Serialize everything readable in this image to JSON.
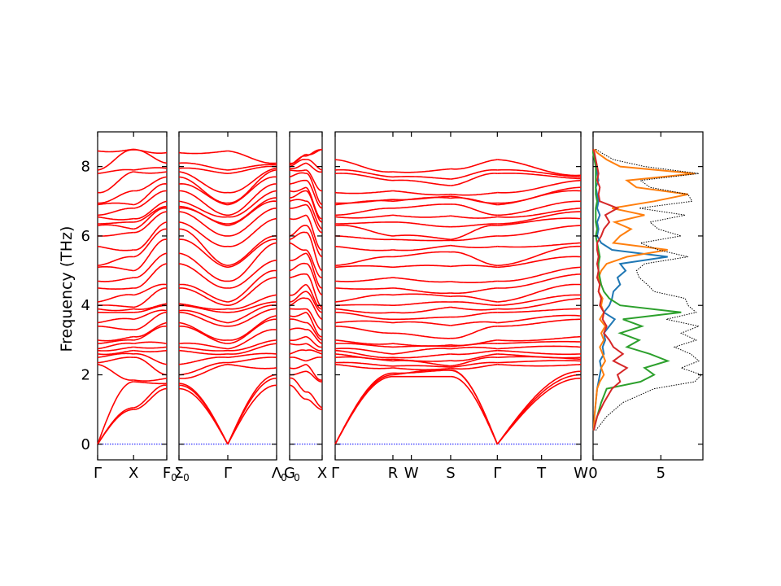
{
  "chart_data": {
    "type": "line",
    "title": "",
    "ylabel": "Frequency (THz)",
    "ylim": [
      -0.45,
      9.0
    ],
    "yticks": [
      0,
      2,
      4,
      6,
      8
    ],
    "band_color": "#ff0000",
    "zero_line_color": "#0000ff",
    "panels": [
      {
        "name": "band-segment-1",
        "xlim": [
          0,
          1
        ],
        "high_symmetry_points": [
          {
            "label": "Γ",
            "sub": "",
            "x": 0.0
          },
          {
            "label": "X",
            "sub": "",
            "x": 0.52
          },
          {
            "label": "F",
            "sub": "0",
            "x": 1.0
          }
        ],
        "bands": {
          "start": [
            0,
            0,
            0,
            2.3,
            2.35,
            2.5,
            2.6,
            2.7,
            2.75,
            2.9,
            3.0,
            3.4,
            3.5,
            3.8,
            3.9,
            4.0,
            4.1,
            4.5,
            4.7,
            5.1,
            5.15,
            5.7,
            6.0,
            6.3,
            6.35,
            6.55,
            6.6,
            6.9,
            6.95,
            7.25,
            7.8,
            7.9,
            8.45
          ],
          "mid": [
            1.0,
            1.05,
            1.8,
            1.85,
            2.6,
            2.8,
            2.9,
            2.5,
            3.1,
            3.0,
            2.7,
            3.3,
            3.8,
            3.6,
            3.95,
            3.9,
            4.5,
            4.3,
            5.0,
            4.8,
            5.6,
            5.4,
            6.2,
            6.1,
            6.5,
            6.4,
            6.9,
            6.8,
            7.3,
            7.9,
            7.85,
            8.5,
            8.48
          ],
          "end": [
            1.6,
            1.7,
            1.75,
            1.9,
            2.0,
            2.3,
            2.7,
            2.8,
            2.9,
            3.4,
            3.5,
            3.8,
            3.85,
            4.0,
            4.05,
            4.5,
            4.6,
            5.2,
            5.5,
            5.9,
            6.2,
            6.4,
            6.7,
            6.8,
            6.85,
            7.0,
            7.3,
            7.5,
            7.7,
            7.85,
            7.95,
            8.1,
            8.4
          ]
        }
      },
      {
        "name": "band-segment-2",
        "xlim": [
          0,
          1
        ],
        "high_symmetry_points": [
          {
            "label": "Σ",
            "sub": "0",
            "x": 0.0
          },
          {
            "label": "Γ",
            "sub": "",
            "x": 0.5
          },
          {
            "label": "Λ",
            "sub": "0",
            "x": 1.0
          }
        ],
        "bands": {
          "start": [
            1.6,
            1.7,
            1.75,
            1.9,
            2.0,
            2.3,
            2.7,
            2.8,
            2.9,
            3.4,
            3.5,
            3.8,
            3.85,
            4.0,
            4.05,
            4.5,
            4.6,
            5.2,
            5.5,
            5.9,
            6.2,
            6.4,
            6.7,
            6.8,
            6.85,
            7.0,
            7.3,
            7.5,
            7.7,
            7.85,
            7.95,
            8.1,
            8.4
          ],
          "mid": [
            0,
            0,
            0,
            2.3,
            2.35,
            2.5,
            2.6,
            2.7,
            2.75,
            2.9,
            3.0,
            3.4,
            3.5,
            3.8,
            3.9,
            4.0,
            4.1,
            4.5,
            4.7,
            5.1,
            5.15,
            5.7,
            6.0,
            6.3,
            6.35,
            6.55,
            6.6,
            6.9,
            6.95,
            7.25,
            7.8,
            7.9,
            8.45
          ],
          "end": [
            1.7,
            1.9,
            2.0,
            2.2,
            2.5,
            2.6,
            2.9,
            3.0,
            3.3,
            3.6,
            3.7,
            3.9,
            4.0,
            4.1,
            4.3,
            4.8,
            5.0,
            5.3,
            5.8,
            5.9,
            6.0,
            6.5,
            6.8,
            7.0,
            7.1,
            7.3,
            7.5,
            7.7,
            7.9,
            7.95,
            8.0,
            8.05,
            8.1
          ]
        }
      },
      {
        "name": "band-segment-3",
        "xlim": [
          0,
          1
        ],
        "high_symmetry_points": [
          {
            "label": "G",
            "sub": "0",
            "x": 0.0
          },
          {
            "label": "X",
            "sub": "",
            "x": 1.0
          }
        ],
        "bands": {
          "start": [
            1.7,
            1.9,
            2.0,
            2.2,
            2.5,
            2.6,
            2.9,
            3.0,
            3.3,
            3.6,
            3.7,
            3.9,
            4.0,
            4.1,
            4.3,
            4.8,
            5.0,
            5.3,
            5.8,
            5.9,
            6.0,
            6.5,
            6.8,
            7.0,
            7.1,
            7.3,
            7.5,
            7.7,
            7.9,
            7.95,
            8.0,
            8.05,
            8.1
          ],
          "mid": [
            1.3,
            1.5,
            2.1,
            2.4,
            2.7,
            2.3,
            3.1,
            2.9,
            3.5,
            3.3,
            3.9,
            4.2,
            3.8,
            4.4,
            4.6,
            4.9,
            5.2,
            5.6,
            5.5,
            6.1,
            6.3,
            6.6,
            7.0,
            6.9,
            7.3,
            7.6,
            7.4,
            7.9,
            8.1,
            8.2,
            7.8,
            8.3,
            8.35
          ],
          "end": [
            1.0,
            1.05,
            1.8,
            1.85,
            2.6,
            2.8,
            2.9,
            2.5,
            3.1,
            3.0,
            2.7,
            3.3,
            3.8,
            3.6,
            3.95,
            3.9,
            4.5,
            4.3,
            5.0,
            4.8,
            5.6,
            5.4,
            6.2,
            6.1,
            6.5,
            6.4,
            6.9,
            6.8,
            7.3,
            7.9,
            7.85,
            8.5,
            8.48
          ]
        }
      },
      {
        "name": "band-segment-4",
        "xlim": [
          0,
          1
        ],
        "high_symmetry_points": [
          {
            "label": "Γ",
            "sub": "",
            "x": 0.0
          },
          {
            "label": "R",
            "sub": "",
            "x": 0.235
          },
          {
            "label": "W",
            "sub": "",
            "x": 0.31
          },
          {
            "label": "S",
            "sub": "",
            "x": 0.47
          },
          {
            "label": "Γ",
            "sub": "",
            "x": 0.66
          },
          {
            "label": "T",
            "sub": "",
            "x": 0.84
          },
          {
            "label": "W",
            "sub": "",
            "x": 1.0
          }
        ],
        "bands": {
          "gamma": [
            0,
            0,
            0,
            2.3,
            2.35,
            2.5,
            2.6,
            2.7,
            2.75,
            2.9,
            3.0,
            3.4,
            3.5,
            3.8,
            3.9,
            4.0,
            4.1,
            4.5,
            4.7,
            5.1,
            5.15,
            5.7,
            6.0,
            6.3,
            6.35,
            6.55,
            6.6,
            6.9,
            6.95,
            7.25,
            7.8,
            7.9,
            8.2
          ],
          "zone": [
            1.95,
            2.0,
            2.05,
            2.2,
            2.25,
            2.4,
            2.45,
            2.5,
            2.6,
            2.8,
            2.9,
            3.2,
            3.5,
            3.6,
            3.8,
            4.0,
            4.3,
            4.5,
            4.8,
            5.1,
            5.4,
            5.6,
            5.9,
            6.0,
            6.4,
            6.6,
            6.8,
            7.0,
            7.05,
            7.3,
            7.6,
            7.7,
            7.85
          ],
          "end": [
            1.9,
            2.0,
            2.1,
            2.3,
            2.4,
            2.45,
            2.5,
            2.6,
            2.8,
            2.95,
            3.1,
            3.6,
            3.7,
            3.9,
            4.2,
            4.3,
            4.6,
            4.9,
            5.1,
            5.4,
            5.7,
            5.8,
            6.3,
            6.5,
            6.7,
            6.8,
            7.0,
            7.3,
            7.4,
            7.6,
            7.65,
            7.7,
            7.75
          ]
        }
      }
    ],
    "dos": {
      "xlim": [
        0,
        8.1
      ],
      "xticks": [
        0,
        5
      ],
      "total_color": "#000000",
      "series_colors": [
        "#1f77b4",
        "#ff7f0e",
        "#2ca02c",
        "#d62728"
      ],
      "freq": [
        0.4,
        0.8,
        1.2,
        1.6,
        1.8,
        2.0,
        2.2,
        2.4,
        2.6,
        2.8,
        3.0,
        3.2,
        3.4,
        3.6,
        3.8,
        4.0,
        4.2,
        4.4,
        4.6,
        4.8,
        5.0,
        5.2,
        5.4,
        5.6,
        5.8,
        6.0,
        6.2,
        6.4,
        6.6,
        6.8,
        7.0,
        7.2,
        7.4,
        7.6,
        7.8,
        8.0,
        8.2,
        8.4,
        8.5
      ],
      "total": [
        0.2,
        1.0,
        2.2,
        4.5,
        7.5,
        8.0,
        6.5,
        7.8,
        7.2,
        6.0,
        7.6,
        6.5,
        7.8,
        5.4,
        7.6,
        7.0,
        6.8,
        4.5,
        4.0,
        3.4,
        3.2,
        3.8,
        7.0,
        4.8,
        3.5,
        6.5,
        4.8,
        4.2,
        6.8,
        3.4,
        7.3,
        7.0,
        4.2,
        3.5,
        7.8,
        3.8,
        1.5,
        0.6,
        0.2
      ],
      "series": [
        [
          0.05,
          0.1,
          0.2,
          0.3,
          0.4,
          0.5,
          0.6,
          0.5,
          0.8,
          0.7,
          0.9,
          0.8,
          1.2,
          1.6,
          0.8,
          1.2,
          1.4,
          1.5,
          2.0,
          1.8,
          2.4,
          2.0,
          5.5,
          1.4,
          0.6,
          0.3,
          0.4,
          0.3,
          0.5,
          0.3,
          0.4,
          0.3,
          0.2,
          0.4,
          0.3,
          0.2,
          0.1,
          0.05,
          0.0
        ],
        [
          0.05,
          0.1,
          0.2,
          0.3,
          0.5,
          0.8,
          0.6,
          0.9,
          0.7,
          0.5,
          0.8,
          0.6,
          0.9,
          0.5,
          0.8,
          0.6,
          0.7,
          0.4,
          0.5,
          0.4,
          0.6,
          1.0,
          2.5,
          5.5,
          1.5,
          2.0,
          2.8,
          1.6,
          3.8,
          1.4,
          4.5,
          7.0,
          3.2,
          2.5,
          7.5,
          2.0,
          1.0,
          0.3,
          0.1
        ],
        [
          0.05,
          0.3,
          0.6,
          1.0,
          3.5,
          4.5,
          3.8,
          5.5,
          4.2,
          2.5,
          3.4,
          2.0,
          3.6,
          2.2,
          6.5,
          2.0,
          1.2,
          0.8,
          0.6,
          0.5,
          0.4,
          0.4,
          0.5,
          0.4,
          0.3,
          0.2,
          0.3,
          0.2,
          0.2,
          0.2,
          0.3,
          0.2,
          0.2,
          0.2,
          0.2,
          0.2,
          0.1,
          0.0,
          0.0
        ],
        [
          0.05,
          0.3,
          0.8,
          1.4,
          2.0,
          1.8,
          2.5,
          1.5,
          2.2,
          1.5,
          1.2,
          0.8,
          1.0,
          0.7,
          0.8,
          0.5,
          0.6,
          0.4,
          0.5,
          0.3,
          0.4,
          0.3,
          0.4,
          0.3,
          0.3,
          0.6,
          0.8,
          1.2,
          0.9,
          1.8,
          0.5,
          0.4,
          0.5,
          0.3,
          0.4,
          0.3,
          0.2,
          0.1,
          0.0
        ]
      ]
    }
  }
}
